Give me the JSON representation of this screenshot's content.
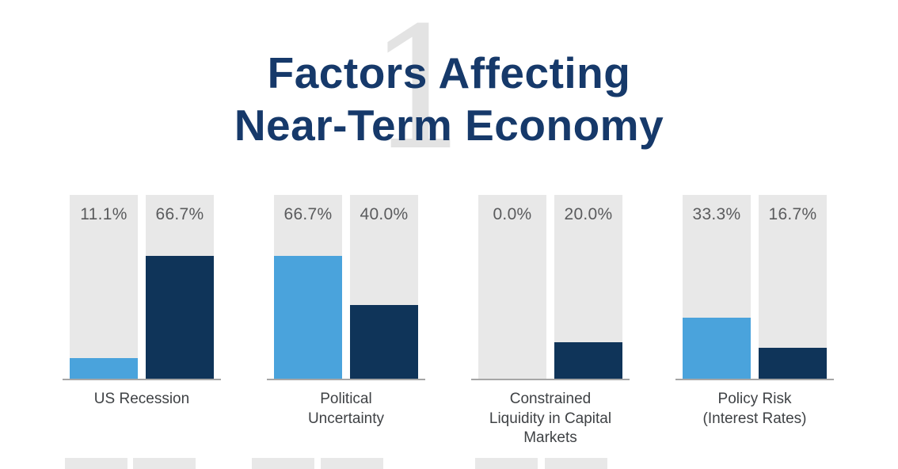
{
  "page": {
    "title_line1": "Factors Affecting",
    "title_line2": "Near-Term Economy",
    "background_numeral": "1"
  },
  "colors": {
    "title_navy": "#16396a",
    "numeral_gray": "#e3e3e3",
    "column_track_gray": "#e8e8e8",
    "bar_light_blue": "#4aa3dc",
    "bar_dark_navy": "#0f3459",
    "percent_text_gray": "#5a5b5d",
    "category_text_gray": "#3f4245",
    "axis_gray": "#a6a6a6",
    "background": "#ffffff"
  },
  "chart_data": {
    "type": "bar",
    "title": "Factors Affecting Near-Term Economy",
    "xlabel": "",
    "ylabel": "",
    "ylim": [
      0,
      100
    ],
    "grid": false,
    "legend_position": "none",
    "categories": [
      "US Recession",
      "Political Uncertainty",
      "Constrained Liquidity in Capital Markets",
      "Policy Risk (Interest Rates)"
    ],
    "category_label_text": [
      "US Recession",
      "Political\nUncertainty",
      "Constrained\nLiquidity in Capital\nMarkets",
      "Policy Risk\n(Interest Rates)"
    ],
    "series": [
      {
        "position": "left",
        "color": "#4aa3dc",
        "values": [
          11.1,
          66.7,
          0.0,
          33.3
        ]
      },
      {
        "position": "right",
        "color": "#0f3459",
        "values": [
          66.7,
          40.0,
          20.0,
          16.7
        ]
      }
    ],
    "value_labels": [
      [
        "11.1%",
        "66.7%"
      ],
      [
        "66.7%",
        "40.0%"
      ],
      [
        "0.0%",
        "20.0%"
      ],
      [
        "33.3%",
        "16.7%"
      ]
    ],
    "note": "Columns are full-height 100% tracks; colored bars fill to each value. A second row of charts is partially visible at the bottom edge (3 column pairs, labels cut off).",
    "partial_second_row_groups_visible": 3
  }
}
